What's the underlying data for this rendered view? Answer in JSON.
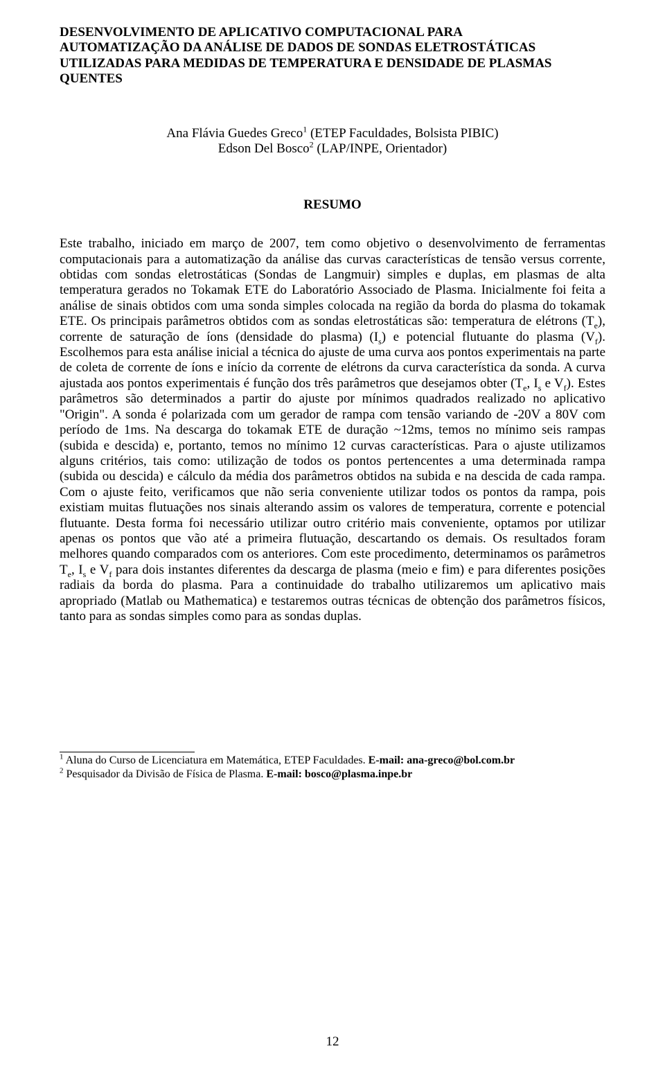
{
  "typography": {
    "font_family": "Times New Roman",
    "title_fontsize_pt": 14,
    "body_fontsize_pt": 14,
    "footnote_fontsize_pt": 12,
    "text_color": "#000000",
    "background_color": "#ffffff"
  },
  "title": {
    "line1": "DESENVOLVIMENTO DE APLICATIVO COMPUTACIONAL PARA",
    "line2": "AUTOMATIZAÇÃO DA ANÁLISE DE DADOS DE SONDAS ELETROSTÁTICAS",
    "line3": "UTILIZADAS PARA MEDIDAS DE TEMPERATURA E DENSIDADE DE PLASMAS",
    "line4": "QUENTES"
  },
  "authors": {
    "author1_name": "Ana Flávia Guedes Greco",
    "author1_sup": "1",
    "author1_affil": " (ETEP Faculdades, Bolsista PIBIC)",
    "author2_name": "Edson Del Bosco",
    "author2_sup": "2",
    "author2_affil": " (LAP/INPE, Orientador)"
  },
  "resumo_label": "RESUMO",
  "abstract": {
    "p1a": "Este trabalho, iniciado em março de 2007, tem como objetivo o desenvolvimento de ferramentas computacionais para a automatização da análise das curvas características de tensão versus corrente, obtidas com sondas eletrostáticas (Sondas de Langmuir) simples e duplas, em plasmas de alta temperatura gerados no Tokamak ETE do Laboratório Associado de Plasma. Inicialmente foi feita a análise de sinais obtidos com uma sonda simples colocada na região da borda do plasma do tokamak ETE. Os principais parâmetros obtidos com as sondas eletrostáticas são: temperatura de elétrons (T",
    "p1a_sub": "e",
    "p1b": "), corrente de saturação de íons (densidade do plasma) (I",
    "p1b_sub": "s",
    "p1c": ") e potencial flutuante do plasma (V",
    "p1c_sub": "f",
    "p1d": "). Escolhemos para esta análise inicial a técnica do ajuste de uma curva aos pontos experimentais na parte de coleta de corrente de íons e início da corrente de elétrons da curva característica da sonda. A curva ajustada aos pontos experimentais é função dos três parâmetros que desejamos obter (T",
    "p1d_sub": "e",
    "p1e": ", I",
    "p1e_sub": "s",
    "p1f": " e V",
    "p1f_sub": "f",
    "p1g": "). Estes parâmetros são determinados a partir do ajuste por mínimos quadrados realizado no aplicativo \"Origin\". A sonda é polarizada com um gerador de rampa com tensão variando de -20V a 80V com período de 1ms. Na descarga do tokamak ETE de duração ~12ms, temos no mínimo seis rampas (subida e descida) e, portanto, temos no mínimo 12 curvas características. Para o ajuste utilizamos alguns critérios, tais como: utilização de todos os pontos pertencentes a uma determinada rampa (subida ou descida) e cálculo da média dos parâmetros obtidos na subida e na descida de cada rampa. Com o ajuste feito, verificamos que não seria conveniente utilizar todos os pontos da rampa, pois existiam muitas flutuações nos sinais alterando assim os valores de temperatura, corrente e potencial flutuante. Desta forma foi necessário utilizar outro critério mais conveniente, optamos por utilizar apenas os pontos que vão até a primeira flutuação, descartando os demais. Os resultados foram melhores quando comparados com os anteriores. Com este procedimento, determinamos os parâmetros T",
    "p1g_sub": "e",
    "p1h": ", I",
    "p1h_sub": "s",
    "p1i": " e V",
    "p1i_sub": "f",
    "p1j": " para dois instantes diferentes da descarga de plasma (meio e fim) e para diferentes posições radiais da borda do plasma.  Para a continuidade do trabalho utilizaremos um aplicativo mais apropriado (Matlab ou Mathematica) e testaremos outras técnicas de obtenção dos parâmetros físicos, tanto para as sondas simples como para as sondas duplas."
  },
  "footnotes": {
    "f1_sup": "1",
    "f1_text_a": " Aluna do Curso de Licenciatura em Matemática, ETEP Faculdades. ",
    "f1_bold": "E-mail: ana-greco@bol.com.br",
    "f2_sup": "2",
    "f2_text_a": " Pesquisador da Divisão de Física de Plasma. ",
    "f2_bold": "E-mail: bosco@plasma.inpe.br"
  },
  "page_number": "12"
}
